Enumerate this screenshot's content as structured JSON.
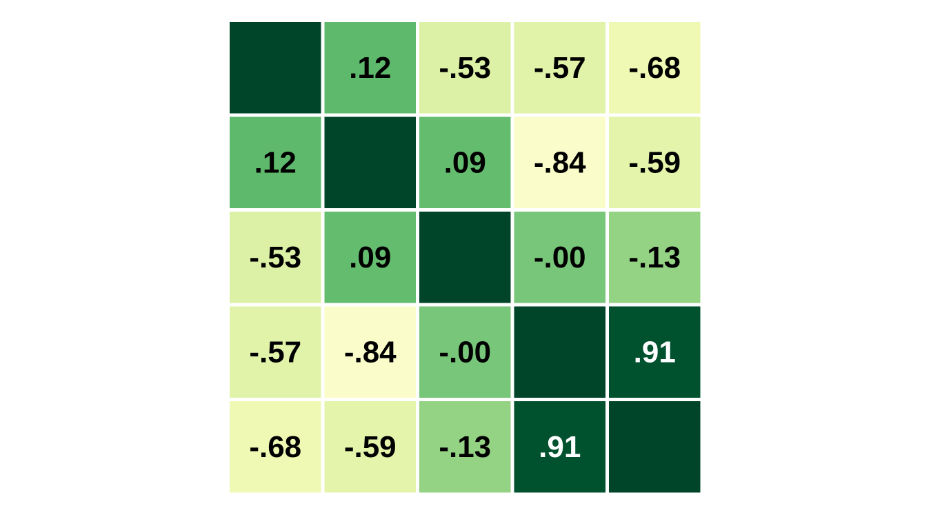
{
  "chart_data": {
    "type": "heatmap",
    "title": "",
    "xlabel": "",
    "ylabel": "",
    "size": 5,
    "color_scale": {
      "name": "YlGn",
      "range": [
        -1,
        1
      ],
      "stops": [
        "#ffffe5",
        "#f7fcb9",
        "#d9f0a3",
        "#addd8e",
        "#78c679",
        "#41ab5d",
        "#238443",
        "#006837",
        "#004529"
      ]
    },
    "values": [
      [
        1.0,
        0.12,
        -0.53,
        -0.57,
        -0.68
      ],
      [
        0.12,
        1.0,
        0.09,
        -0.84,
        -0.59
      ],
      [
        -0.53,
        0.09,
        1.0,
        -0.0,
        -0.13
      ],
      [
        -0.57,
        -0.84,
        -0.0,
        1.0,
        0.91
      ],
      [
        -0.68,
        -0.59,
        -0.13,
        0.91,
        1.0
      ]
    ],
    "labels": [
      [
        "",
        ".12",
        "-.53",
        "-.57",
        "-.68"
      ],
      [
        ".12",
        "",
        ".09",
        "-.84",
        "-.59"
      ],
      [
        "-.53",
        ".09",
        "",
        "-.00",
        "-.13"
      ],
      [
        "-.57",
        "-.84",
        "-.00",
        "",
        ".91"
      ],
      [
        "-.68",
        "-.59",
        "-.13",
        ".91",
        ""
      ]
    ],
    "label_colors": {
      "dark_text": "#000000",
      "light_text": "#ffffff"
    }
  }
}
